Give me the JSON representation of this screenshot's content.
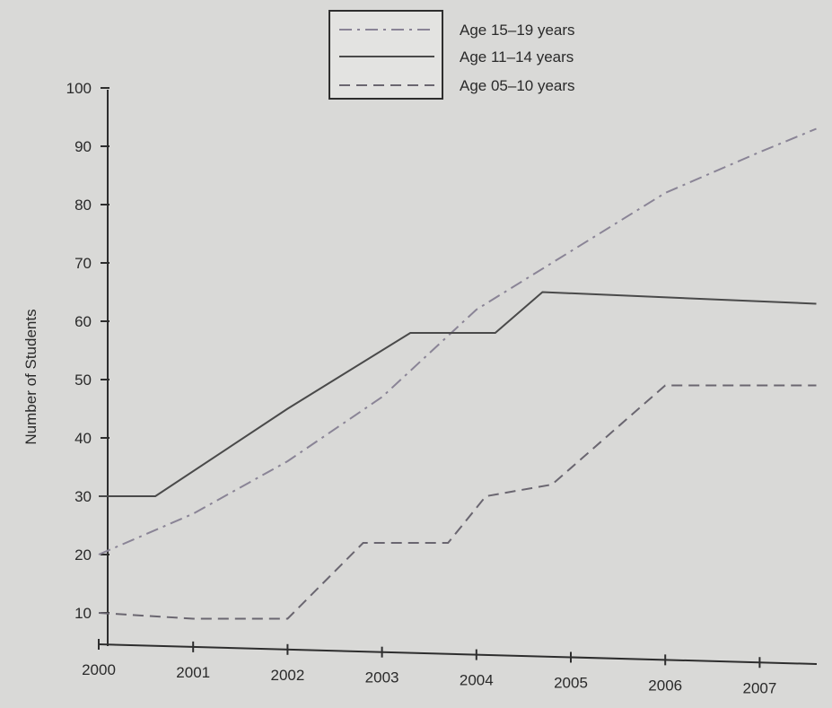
{
  "chart_data": {
    "type": "line",
    "title": "",
    "xlabel": "",
    "ylabel": "Number of Students",
    "x": [
      2000,
      2000.6,
      2001,
      2002,
      2002.8,
      2003,
      2003.3,
      2003.7,
      2004,
      2004.7,
      2005,
      2006,
      2007,
      2007.6
    ],
    "x_ticks": [
      "2000",
      "2001",
      "2002",
      "2003",
      "2004",
      "2005",
      "2006",
      "2007"
    ],
    "y_ticks": [
      "10",
      "20",
      "30",
      "40",
      "50",
      "60",
      "70",
      "80",
      "90",
      "100"
    ],
    "ylim": [
      0,
      100
    ],
    "grid": false,
    "legend": "top-center",
    "series": [
      {
        "name": "Age 15–19 years",
        "style": "dash-dot",
        "color": "#8a8496",
        "points": [
          [
            2000,
            20
          ],
          [
            2001,
            27
          ],
          [
            2002,
            36
          ],
          [
            2003,
            47
          ],
          [
            2004,
            62
          ],
          [
            2005,
            72
          ],
          [
            2006,
            82
          ],
          [
            2007,
            89
          ],
          [
            2007.6,
            93
          ]
        ]
      },
      {
        "name": "Age 11–14 years",
        "style": "solid",
        "color": "#4a4a4a",
        "points": [
          [
            2000,
            30
          ],
          [
            2000.6,
            30
          ],
          [
            2002,
            45
          ],
          [
            2003.3,
            58
          ],
          [
            2004.2,
            58
          ],
          [
            2004.7,
            65
          ],
          [
            2007.6,
            63
          ]
        ]
      },
      {
        "name": "Age 05–10 years",
        "style": "dashed",
        "color": "#6a6670",
        "points": [
          [
            2000,
            10
          ],
          [
            2001,
            9
          ],
          [
            2002,
            9
          ],
          [
            2002.8,
            22
          ],
          [
            2003.7,
            22
          ],
          [
            2004.1,
            30
          ],
          [
            2004.8,
            32
          ],
          [
            2006,
            49
          ],
          [
            2007.6,
            49
          ]
        ]
      }
    ]
  }
}
